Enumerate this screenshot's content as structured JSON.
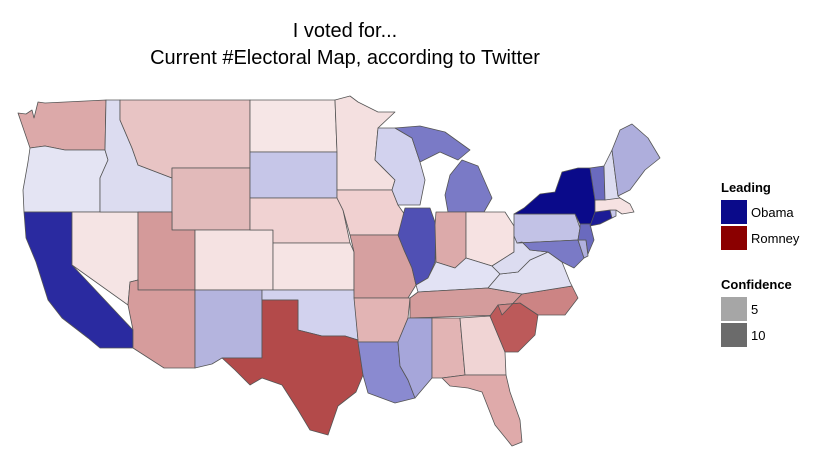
{
  "title": {
    "line1": "I voted for...",
    "line2": "Current #Electoral Map, according to Twitter"
  },
  "legend": {
    "leading_title": "Leading",
    "leading_items": [
      {
        "label": "Obama",
        "color": "#0a0a8a"
      },
      {
        "label": "Romney",
        "color": "#8b0000"
      }
    ],
    "confidence_title": "Confidence",
    "confidence_items": [
      {
        "label": "5",
        "color": "#a6a6a6"
      },
      {
        "label": "10",
        "color": "#6b6b6b"
      }
    ]
  },
  "map_data": {
    "type": "choropleth",
    "region": "Contiguous United States",
    "states": [
      {
        "name": "Washington",
        "leading": "Romney",
        "fill": "#dca9a9"
      },
      {
        "name": "Oregon",
        "leading": "Obama",
        "fill": "#e4e4f3"
      },
      {
        "name": "California",
        "leading": "Obama",
        "fill": "#2a2aa0"
      },
      {
        "name": "Nevada",
        "leading": "Romney",
        "fill": "#f5e4e4"
      },
      {
        "name": "Idaho",
        "leading": "Obama",
        "fill": "#dcdcf0"
      },
      {
        "name": "Montana",
        "leading": "Romney",
        "fill": "#e8c4c4"
      },
      {
        "name": "Wyoming",
        "leading": "Romney",
        "fill": "#e2baba"
      },
      {
        "name": "Utah",
        "leading": "Romney",
        "fill": "#d49a9a"
      },
      {
        "name": "Arizona",
        "leading": "Romney",
        "fill": "#d69c9c"
      },
      {
        "name": "Colorado",
        "leading": "Romney",
        "fill": "#f5e2e2"
      },
      {
        "name": "New Mexico",
        "leading": "Obama",
        "fill": "#b4b4de"
      },
      {
        "name": "North Dakota",
        "leading": "Romney",
        "fill": "#f6e6e6"
      },
      {
        "name": "South Dakota",
        "leading": "Obama",
        "fill": "#c6c6e8"
      },
      {
        "name": "Nebraska",
        "leading": "Romney",
        "fill": "#f0d2d2"
      },
      {
        "name": "Kansas",
        "leading": "Romney",
        "fill": "#f6e4e4"
      },
      {
        "name": "Oklahoma",
        "leading": "Obama",
        "fill": "#d2d2ee"
      },
      {
        "name": "Texas",
        "leading": "Romney",
        "fill": "#b34a4a"
      },
      {
        "name": "Minnesota",
        "leading": "Romney",
        "fill": "#f4e0e0"
      },
      {
        "name": "Iowa",
        "leading": "Romney",
        "fill": "#f0d0d0"
      },
      {
        "name": "Missouri",
        "leading": "Romney",
        "fill": "#d6a0a0"
      },
      {
        "name": "Arkansas",
        "leading": "Romney",
        "fill": "#e2b4b4"
      },
      {
        "name": "Louisiana",
        "leading": "Obama",
        "fill": "#8a8ad0"
      },
      {
        "name": "Wisconsin",
        "leading": "Obama",
        "fill": "#d2d2ee"
      },
      {
        "name": "Illinois",
        "leading": "Obama",
        "fill": "#5050b4"
      },
      {
        "name": "Michigan",
        "leading": "Obama",
        "fill": "#7a7ac6"
      },
      {
        "name": "Indiana",
        "leading": "Romney",
        "fill": "#dcaaaa"
      },
      {
        "name": "Ohio",
        "leading": "Romney",
        "fill": "#f6e2e2"
      },
      {
        "name": "Kentucky",
        "leading": "Obama",
        "fill": "#e2e2f4"
      },
      {
        "name": "Tennessee",
        "leading": "Romney",
        "fill": "#d49c9c"
      },
      {
        "name": "Mississippi",
        "leading": "Obama",
        "fill": "#a6a6da"
      },
      {
        "name": "Alabama",
        "leading": "Romney",
        "fill": "#e2b4b4"
      },
      {
        "name": "Georgia",
        "leading": "Romney",
        "fill": "#f0d4d4"
      },
      {
        "name": "Florida",
        "leading": "Romney",
        "fill": "#dfaaaa"
      },
      {
        "name": "South Carolina",
        "leading": "Romney",
        "fill": "#bc5a5a"
      },
      {
        "name": "North Carolina",
        "leading": "Romney",
        "fill": "#cc8484"
      },
      {
        "name": "Virginia",
        "leading": "Obama",
        "fill": "#e0e0f2"
      },
      {
        "name": "West Virginia",
        "leading": "Obama",
        "fill": "#dcdcf0"
      },
      {
        "name": "Pennsylvania",
        "leading": "Obama",
        "fill": "#c2c2e6"
      },
      {
        "name": "New York",
        "leading": "Obama",
        "fill": "#0a0a8a"
      },
      {
        "name": "Maryland",
        "leading": "Obama",
        "fill": "#7a7ac6"
      },
      {
        "name": "Delaware",
        "leading": "Obama",
        "fill": "#b0b0de"
      },
      {
        "name": "New Jersey",
        "leading": "Obama",
        "fill": "#6a6abe"
      },
      {
        "name": "Connecticut",
        "leading": "Obama",
        "fill": "#1c1c96"
      },
      {
        "name": "Rhode Island",
        "leading": "Obama",
        "fill": "#c8c8ea"
      },
      {
        "name": "Massachusetts",
        "leading": "Romney",
        "fill": "#f6e2e2"
      },
      {
        "name": "Vermont",
        "leading": "Obama",
        "fill": "#6a6abe"
      },
      {
        "name": "New Hampshire",
        "leading": "Obama",
        "fill": "#dcdcf0"
      },
      {
        "name": "Maine",
        "leading": "Obama",
        "fill": "#aeaedc"
      }
    ]
  }
}
